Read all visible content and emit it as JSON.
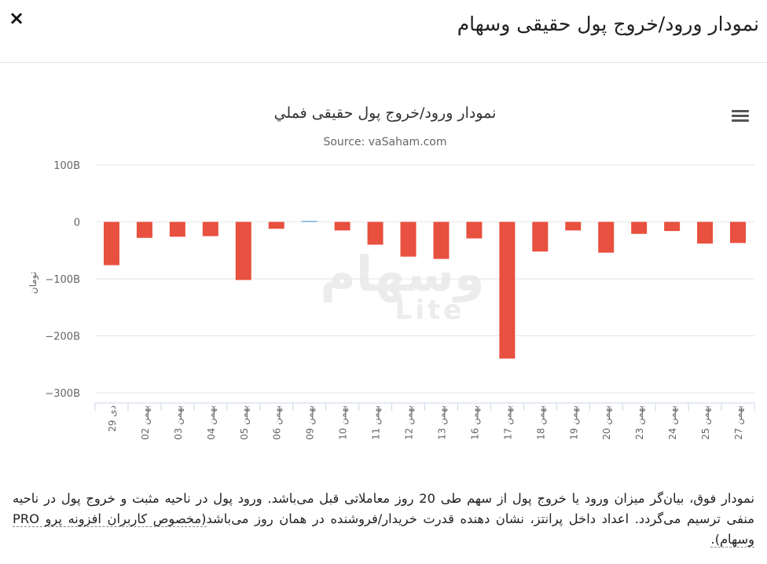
{
  "header": {
    "title": "نمودار ورود/خروج پول حقیقی وسهام",
    "close_label": "×"
  },
  "watermark": {
    "word": "وسهام",
    "sub": "Lite"
  },
  "chart_data": {
    "type": "bar",
    "title": "نمودار ورود/خروج پول حقیقی فملي",
    "subtitle": "Source: vaSaham.com",
    "ylabel": "تومان",
    "xlabel": "",
    "ylim": [
      -300,
      100
    ],
    "yticks": [
      100,
      0,
      -100,
      -200,
      -300
    ],
    "ytick_labels": [
      "100B",
      "0",
      "−100B",
      "−200B",
      "−300B"
    ],
    "grid": true,
    "legend": "none",
    "colors": {
      "negative": "#e8503f",
      "positive": "#7cb5ec"
    },
    "categories": [
      "29 دی",
      "02 بهمن",
      "03 بهمن",
      "04 بهمن",
      "05 بهمن",
      "06 بهمن",
      "09 بهمن",
      "10 بهمن",
      "11 بهمن",
      "12 بهمن",
      "13 بهمن",
      "16 بهمن",
      "17 بهمن",
      "18 بهمن",
      "19 بهمن",
      "20 بهمن",
      "23 بهمن",
      "24 بهمن",
      "25 بهمن",
      "27 بهمن"
    ],
    "values": [
      -76,
      -28,
      -26,
      -25,
      -102,
      -12,
      2,
      -15,
      -40,
      -61,
      -65,
      -29,
      -240,
      -52,
      -15,
      -54,
      -21,
      -16,
      -38,
      -37
    ]
  },
  "description": {
    "text": "نمودار فوق، بیان‌گر میزان ورود یا خروج پول از سهم طی 20 روز معاملاتی قبل می‌باشد. ورود پول در ناحیه مثبت و خروج پول در ناحیه منفی ترسیم می‌گردد. اعداد داخل پرانتز، نشان دهنده قدرت خریدار/فروشنده در همان روز می‌باشد",
    "link": "(مخصوص کاربران افزونه پرو PRO وسهام)."
  }
}
